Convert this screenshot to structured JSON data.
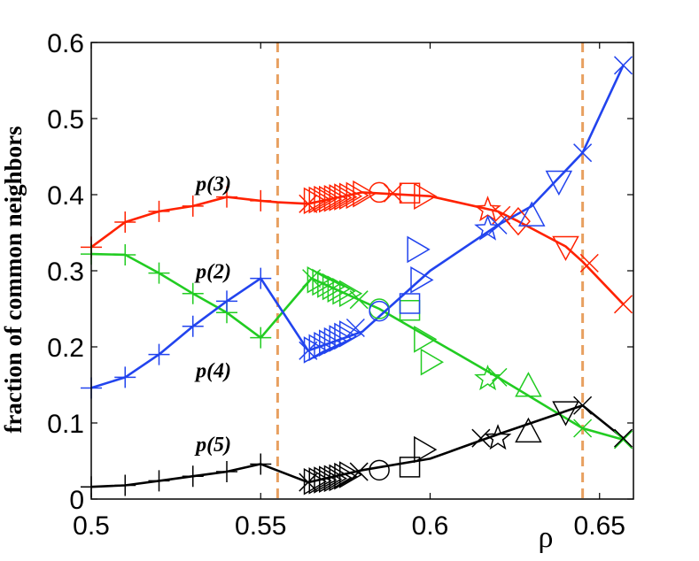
{
  "chart_data": {
    "type": "line",
    "title": "",
    "xlabel": "ρ",
    "ylabel": "fraction of common neighbors",
    "xlim": [
      0.5,
      0.66
    ],
    "ylim": [
      0,
      0.6
    ],
    "xticks": [
      0.5,
      0.55,
      0.6,
      0.65
    ],
    "xtick_labels": [
      "0.5",
      "0.55",
      "0.6",
      "0.65"
    ],
    "yticks": [
      0,
      0.1,
      0.2,
      0.3,
      0.4,
      0.5,
      0.6
    ],
    "ytick_labels": [
      "0",
      "0.1",
      "0.2",
      "0.3",
      "0.4",
      "0.5",
      "0.6"
    ],
    "grid": false,
    "vlines": [
      {
        "x": 0.555,
        "color": "#e8a060",
        "style": "dashed"
      },
      {
        "x": 0.645,
        "color": "#e8a060",
        "style": "dashed"
      }
    ],
    "series": [
      {
        "name": "p(3)",
        "color": "#ff2200",
        "label_at": [
          0.511,
          0.405
        ],
        "line": [
          [
            0.5,
            0.331
          ],
          [
            0.51,
            0.364
          ],
          [
            0.52,
            0.378
          ],
          [
            0.53,
            0.385
          ],
          [
            0.54,
            0.397
          ],
          [
            0.55,
            0.392
          ],
          [
            0.555,
            0.39
          ],
          [
            0.564,
            0.388
          ],
          [
            0.58,
            0.403
          ],
          [
            0.6,
            0.398
          ],
          [
            0.62,
            0.378
          ],
          [
            0.626,
            0.365
          ],
          [
            0.64,
            0.332
          ],
          [
            0.645,
            0.312
          ],
          [
            0.657,
            0.256
          ]
        ],
        "markers": [
          {
            "x": 0.5,
            "y": 0.331,
            "m": "plus"
          },
          {
            "x": 0.51,
            "y": 0.364,
            "m": "plus"
          },
          {
            "x": 0.52,
            "y": 0.378,
            "m": "plus"
          },
          {
            "x": 0.53,
            "y": 0.385,
            "m": "plus"
          },
          {
            "x": 0.54,
            "y": 0.397,
            "m": "plus"
          },
          {
            "x": 0.55,
            "y": 0.392,
            "m": "plus"
          },
          {
            "x": 0.564,
            "y": 0.388,
            "m": "x"
          },
          {
            "x": 0.5655,
            "y": 0.392,
            "m": "tri-right"
          },
          {
            "x": 0.567,
            "y": 0.393,
            "m": "tri-right"
          },
          {
            "x": 0.5685,
            "y": 0.394,
            "m": "tri-right"
          },
          {
            "x": 0.57,
            "y": 0.394,
            "m": "tri-right"
          },
          {
            "x": 0.5715,
            "y": 0.395,
            "m": "tri-right"
          },
          {
            "x": 0.573,
            "y": 0.396,
            "m": "tri-right"
          },
          {
            "x": 0.5745,
            "y": 0.397,
            "m": "tri-right"
          },
          {
            "x": 0.576,
            "y": 0.398,
            "m": "tri-right"
          },
          {
            "x": 0.578,
            "y": 0.399,
            "m": "tri-right"
          },
          {
            "x": 0.58,
            "y": 0.401,
            "m": "tri-right"
          },
          {
            "x": 0.585,
            "y": 0.403,
            "m": "circle"
          },
          {
            "x": 0.589,
            "y": 0.402,
            "m": "x"
          },
          {
            "x": 0.594,
            "y": 0.402,
            "m": "square"
          },
          {
            "x": 0.598,
            "y": 0.398,
            "m": "tri-right"
          },
          {
            "x": 0.617,
            "y": 0.38,
            "m": "star"
          },
          {
            "x": 0.621,
            "y": 0.373,
            "m": "x"
          },
          {
            "x": 0.626,
            "y": 0.365,
            "m": "diamond"
          },
          {
            "x": 0.64,
            "y": 0.332,
            "m": "tri-down"
          },
          {
            "x": 0.647,
            "y": 0.31,
            "m": "x"
          },
          {
            "x": 0.657,
            "y": 0.256,
            "m": "x"
          }
        ]
      },
      {
        "name": "p(2)",
        "color": "#22cc22",
        "label_at": [
          0.511,
          0.29
        ],
        "line": [
          [
            0.5,
            0.322
          ],
          [
            0.51,
            0.321
          ],
          [
            0.52,
            0.297
          ],
          [
            0.53,
            0.27
          ],
          [
            0.54,
            0.245
          ],
          [
            0.55,
            0.212
          ],
          [
            0.565,
            0.29
          ],
          [
            0.585,
            0.25
          ],
          [
            0.62,
            0.16
          ],
          [
            0.645,
            0.093
          ],
          [
            0.657,
            0.078
          ]
        ],
        "markers": [
          {
            "x": 0.5,
            "y": 0.322,
            "m": "plus"
          },
          {
            "x": 0.51,
            "y": 0.321,
            "m": "plus"
          },
          {
            "x": 0.52,
            "y": 0.297,
            "m": "plus"
          },
          {
            "x": 0.53,
            "y": 0.27,
            "m": "plus"
          },
          {
            "x": 0.54,
            "y": 0.245,
            "m": "plus"
          },
          {
            "x": 0.55,
            "y": 0.212,
            "m": "plus"
          },
          {
            "x": 0.565,
            "y": 0.29,
            "m": "x"
          },
          {
            "x": 0.5665,
            "y": 0.288,
            "m": "tri-right"
          },
          {
            "x": 0.568,
            "y": 0.285,
            "m": "tri-right"
          },
          {
            "x": 0.5695,
            "y": 0.282,
            "m": "tri-right"
          },
          {
            "x": 0.571,
            "y": 0.279,
            "m": "tri-right"
          },
          {
            "x": 0.5725,
            "y": 0.276,
            "m": "tri-right"
          },
          {
            "x": 0.574,
            "y": 0.273,
            "m": "tri-right"
          },
          {
            "x": 0.576,
            "y": 0.27,
            "m": "tri-right"
          },
          {
            "x": 0.579,
            "y": 0.262,
            "m": "x"
          },
          {
            "x": 0.585,
            "y": 0.25,
            "m": "circle"
          },
          {
            "x": 0.594,
            "y": 0.248,
            "m": "square"
          },
          {
            "x": 0.598,
            "y": 0.21,
            "m": "tri-right"
          },
          {
            "x": 0.6,
            "y": 0.18,
            "m": "tri-right"
          },
          {
            "x": 0.617,
            "y": 0.158,
            "m": "star"
          },
          {
            "x": 0.62,
            "y": 0.16,
            "m": "x"
          },
          {
            "x": 0.629,
            "y": 0.148,
            "m": "tri-up"
          },
          {
            "x": 0.645,
            "y": 0.093,
            "m": "x"
          },
          {
            "x": 0.657,
            "y": 0.078,
            "m": "x"
          }
        ]
      },
      {
        "name": "p(4)",
        "color": "#2244ee",
        "label_at": [
          0.511,
          0.16
        ],
        "line": [
          [
            0.5,
            0.146
          ],
          [
            0.51,
            0.16
          ],
          [
            0.52,
            0.19
          ],
          [
            0.53,
            0.227
          ],
          [
            0.54,
            0.26
          ],
          [
            0.55,
            0.29
          ],
          [
            0.564,
            0.195
          ],
          [
            0.58,
            0.22
          ],
          [
            0.6,
            0.3
          ],
          [
            0.62,
            0.36
          ],
          [
            0.63,
            0.385
          ],
          [
            0.645,
            0.455
          ],
          [
            0.657,
            0.57
          ]
        ],
        "markers": [
          {
            "x": 0.5,
            "y": 0.146,
            "m": "plus"
          },
          {
            "x": 0.51,
            "y": 0.16,
            "m": "plus"
          },
          {
            "x": 0.52,
            "y": 0.19,
            "m": "plus"
          },
          {
            "x": 0.53,
            "y": 0.227,
            "m": "plus"
          },
          {
            "x": 0.54,
            "y": 0.26,
            "m": "plus"
          },
          {
            "x": 0.55,
            "y": 0.29,
            "m": "plus"
          },
          {
            "x": 0.564,
            "y": 0.195,
            "m": "x"
          },
          {
            "x": 0.5655,
            "y": 0.196,
            "m": "tri-right"
          },
          {
            "x": 0.567,
            "y": 0.199,
            "m": "tri-right"
          },
          {
            "x": 0.5685,
            "y": 0.202,
            "m": "tri-right"
          },
          {
            "x": 0.57,
            "y": 0.205,
            "m": "tri-right"
          },
          {
            "x": 0.5715,
            "y": 0.208,
            "m": "tri-right"
          },
          {
            "x": 0.573,
            "y": 0.211,
            "m": "tri-right"
          },
          {
            "x": 0.5745,
            "y": 0.214,
            "m": "tri-right"
          },
          {
            "x": 0.576,
            "y": 0.217,
            "m": "tri-right"
          },
          {
            "x": 0.578,
            "y": 0.225,
            "m": "x"
          },
          {
            "x": 0.585,
            "y": 0.247,
            "m": "circle"
          },
          {
            "x": 0.594,
            "y": 0.257,
            "m": "square"
          },
          {
            "x": 0.596,
            "y": 0.328,
            "m": "tri-right"
          },
          {
            "x": 0.597,
            "y": 0.288,
            "m": "tri-right"
          },
          {
            "x": 0.617,
            "y": 0.355,
            "m": "star"
          },
          {
            "x": 0.62,
            "y": 0.36,
            "m": "x"
          },
          {
            "x": 0.63,
            "y": 0.372,
            "m": "tri-up"
          },
          {
            "x": 0.638,
            "y": 0.418,
            "m": "tri-down"
          },
          {
            "x": 0.645,
            "y": 0.455,
            "m": "x"
          },
          {
            "x": 0.657,
            "y": 0.57,
            "m": "x"
          }
        ]
      },
      {
        "name": "p(5)",
        "color": "#000000",
        "label_at": [
          0.511,
          0.063
        ],
        "line": [
          [
            0.5,
            0.016
          ],
          [
            0.51,
            0.018
          ],
          [
            0.52,
            0.024
          ],
          [
            0.53,
            0.03
          ],
          [
            0.54,
            0.036
          ],
          [
            0.55,
            0.046
          ],
          [
            0.564,
            0.022
          ],
          [
            0.58,
            0.038
          ],
          [
            0.6,
            0.053
          ],
          [
            0.62,
            0.085
          ],
          [
            0.645,
            0.123
          ],
          [
            0.657,
            0.08
          ]
        ],
        "markers": [
          {
            "x": 0.5,
            "y": 0.016,
            "m": "plus"
          },
          {
            "x": 0.51,
            "y": 0.018,
            "m": "plus"
          },
          {
            "x": 0.52,
            "y": 0.024,
            "m": "plus"
          },
          {
            "x": 0.53,
            "y": 0.03,
            "m": "plus"
          },
          {
            "x": 0.54,
            "y": 0.036,
            "m": "plus"
          },
          {
            "x": 0.55,
            "y": 0.046,
            "m": "plus"
          },
          {
            "x": 0.564,
            "y": 0.022,
            "m": "x"
          },
          {
            "x": 0.5655,
            "y": 0.023,
            "m": "tri-right"
          },
          {
            "x": 0.567,
            "y": 0.024,
            "m": "tri-right"
          },
          {
            "x": 0.5685,
            "y": 0.025,
            "m": "tri-right"
          },
          {
            "x": 0.57,
            "y": 0.026,
            "m": "tri-right"
          },
          {
            "x": 0.5715,
            "y": 0.027,
            "m": "tri-right"
          },
          {
            "x": 0.573,
            "y": 0.028,
            "m": "tri-right"
          },
          {
            "x": 0.5745,
            "y": 0.03,
            "m": "tri-right"
          },
          {
            "x": 0.576,
            "y": 0.032,
            "m": "tri-right"
          },
          {
            "x": 0.579,
            "y": 0.036,
            "m": "x"
          },
          {
            "x": 0.585,
            "y": 0.038,
            "m": "circle"
          },
          {
            "x": 0.594,
            "y": 0.042,
            "m": "square"
          },
          {
            "x": 0.598,
            "y": 0.065,
            "m": "tri-right"
          },
          {
            "x": 0.615,
            "y": 0.08,
            "m": "x"
          },
          {
            "x": 0.62,
            "y": 0.08,
            "m": "star"
          },
          {
            "x": 0.629,
            "y": 0.088,
            "m": "tri-up"
          },
          {
            "x": 0.64,
            "y": 0.115,
            "m": "tri-down"
          },
          {
            "x": 0.645,
            "y": 0.123,
            "m": "x"
          },
          {
            "x": 0.657,
            "y": 0.08,
            "m": "x"
          }
        ]
      }
    ]
  }
}
